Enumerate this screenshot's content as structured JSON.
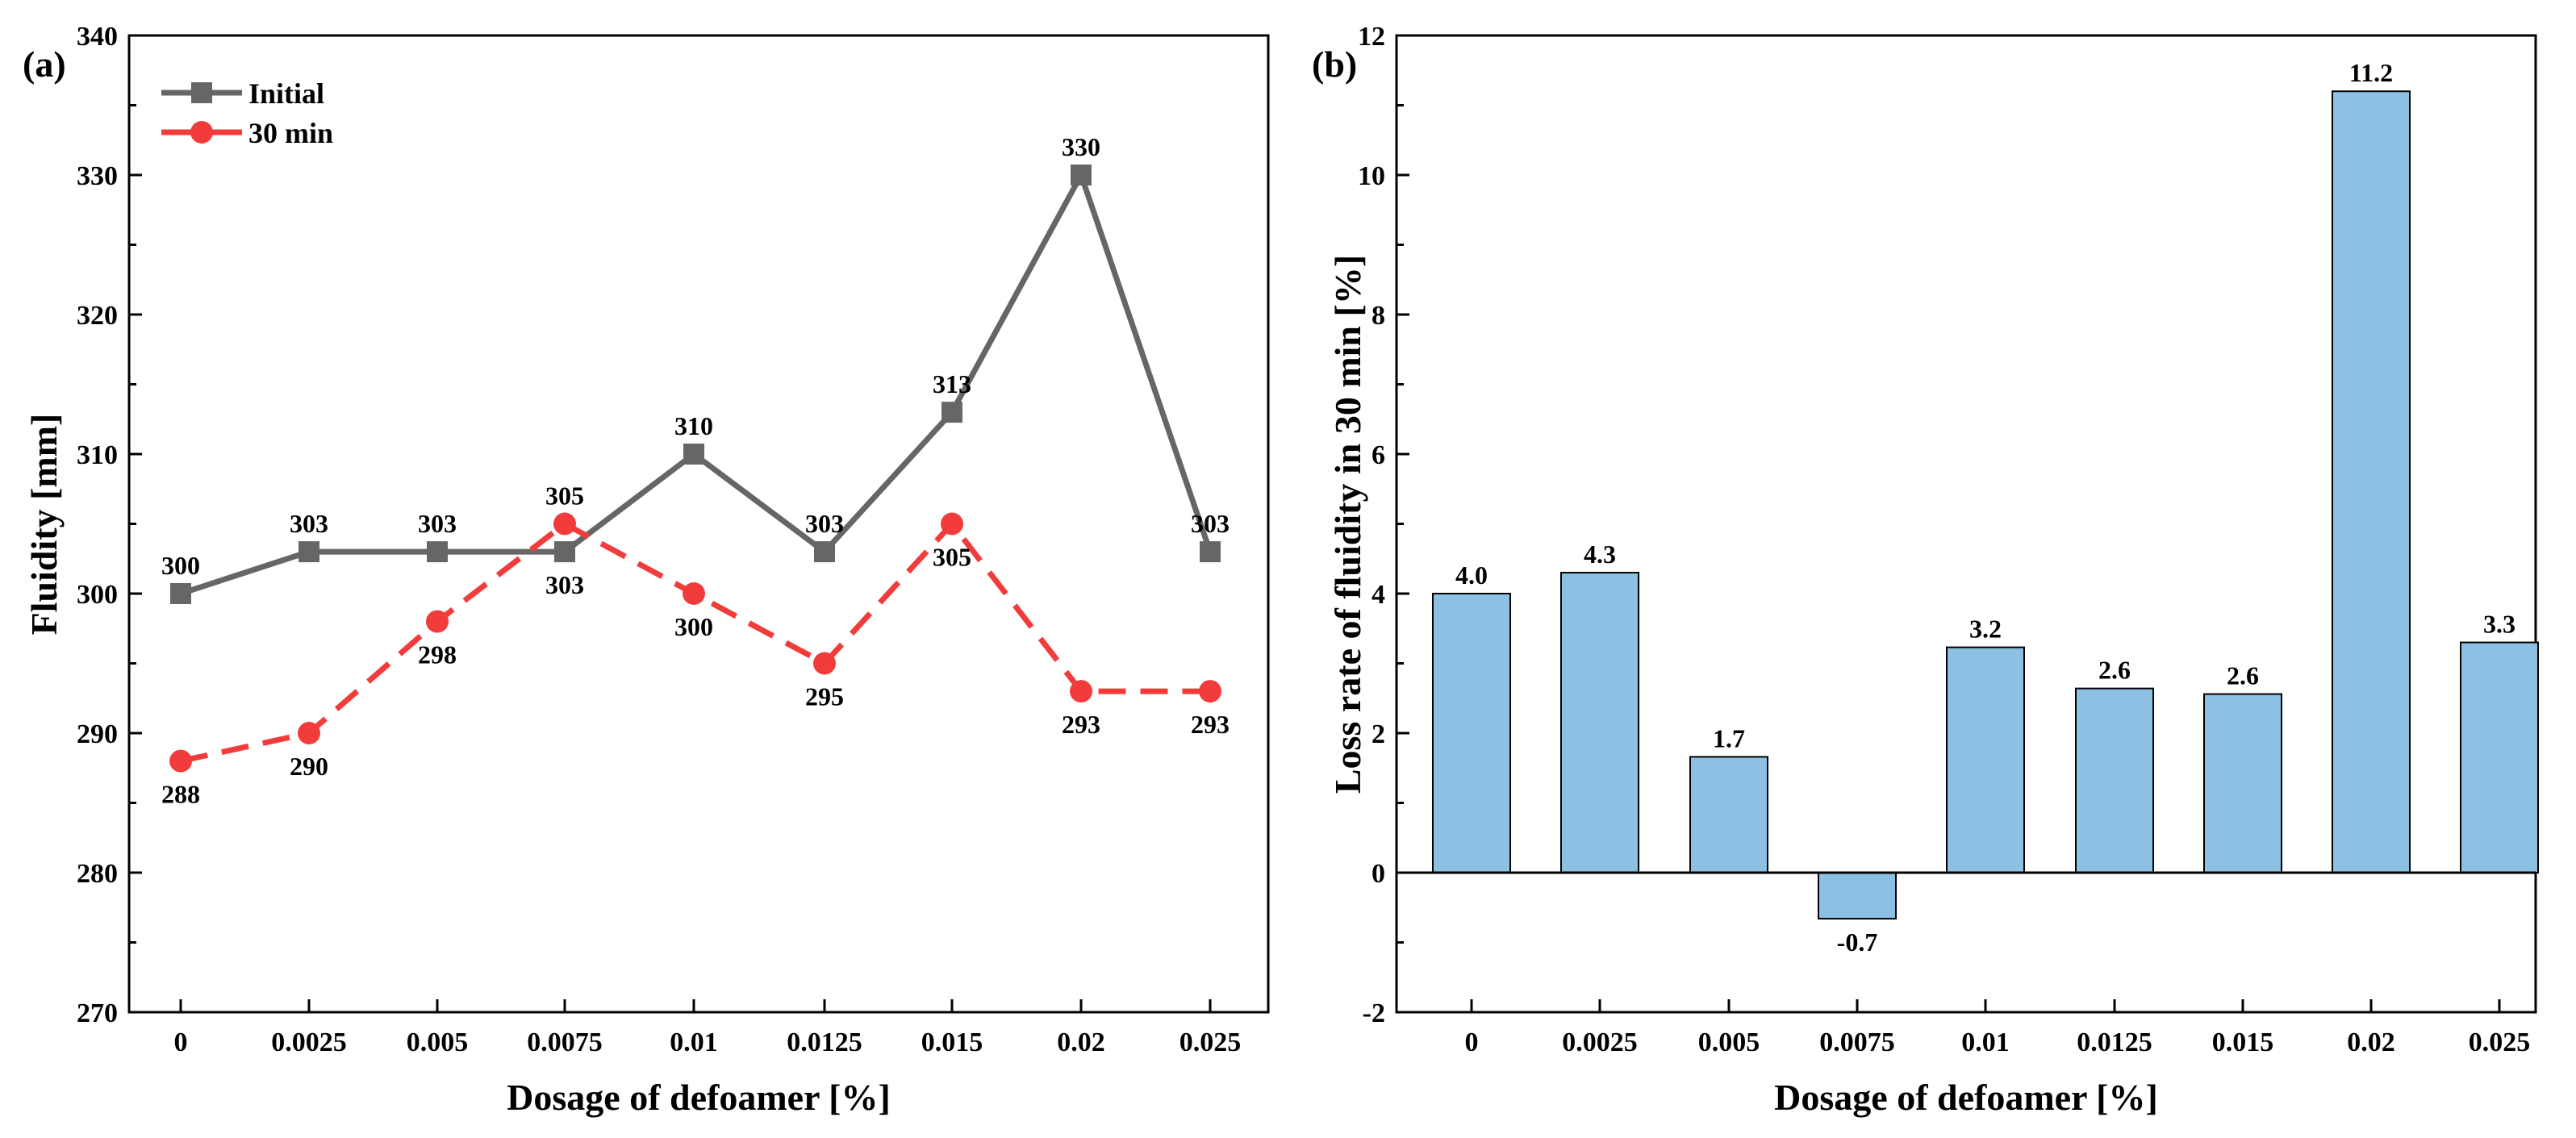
{
  "chart_data": [
    {
      "panel": "(a)",
      "type": "line",
      "categories": [
        "0",
        "0.0025",
        "0.005",
        "0.0075",
        "0.01",
        "0.0125",
        "0.015",
        "0.02",
        "0.025"
      ],
      "series": [
        {
          "name": "Initial",
          "values": [
            300,
            303,
            303,
            303,
            310,
            303,
            313,
            330,
            303
          ],
          "labels": [
            "300",
            "303",
            "303",
            "303",
            "310",
            "303",
            "313",
            "330",
            "303"
          ],
          "color": "#666666",
          "marker": "square",
          "dash": "solid"
        },
        {
          "name": "30 min",
          "values": [
            288,
            290,
            298,
            305,
            300,
            295,
            305,
            293,
            293
          ],
          "labels": [
            "288",
            "290",
            "298",
            "305",
            "300",
            "295",
            "305",
            "293",
            "293"
          ],
          "color": "#f23c3c",
          "marker": "circle",
          "dash": "dashed"
        }
      ],
      "xlabel": "Dosage of defoamer [%]",
      "ylabel": "Fluidity [mm]",
      "ylim": [
        270,
        340
      ],
      "yticks": [
        "270",
        "280",
        "290",
        "300",
        "310",
        "320",
        "330",
        "340"
      ],
      "legend": "top-left",
      "grid": false
    },
    {
      "panel": "(b)",
      "type": "bar",
      "categories": [
        "0",
        "0.0025",
        "0.005",
        "0.0075",
        "0.01",
        "0.0125",
        "0.015",
        "0.02",
        "0.025"
      ],
      "values": [
        4.0,
        4.3,
        1.66,
        -0.66,
        3.23,
        2.64,
        2.56,
        11.2,
        3.3
      ],
      "labels": [
        "4.0",
        "4.3",
        "1.7",
        "-0.7",
        "3.2",
        "2.6",
        "2.6",
        "11.2",
        "3.3"
      ],
      "color": "#8cc1e3",
      "xlabel": "Dosage of defoamer [%]",
      "ylabel": "Loss rate of fluidity in 30 min [%]",
      "ylim": [
        -2,
        12
      ],
      "yticks": [
        "-2",
        "0",
        "2",
        "4",
        "6",
        "8",
        "10",
        "12"
      ],
      "grid": false
    }
  ]
}
